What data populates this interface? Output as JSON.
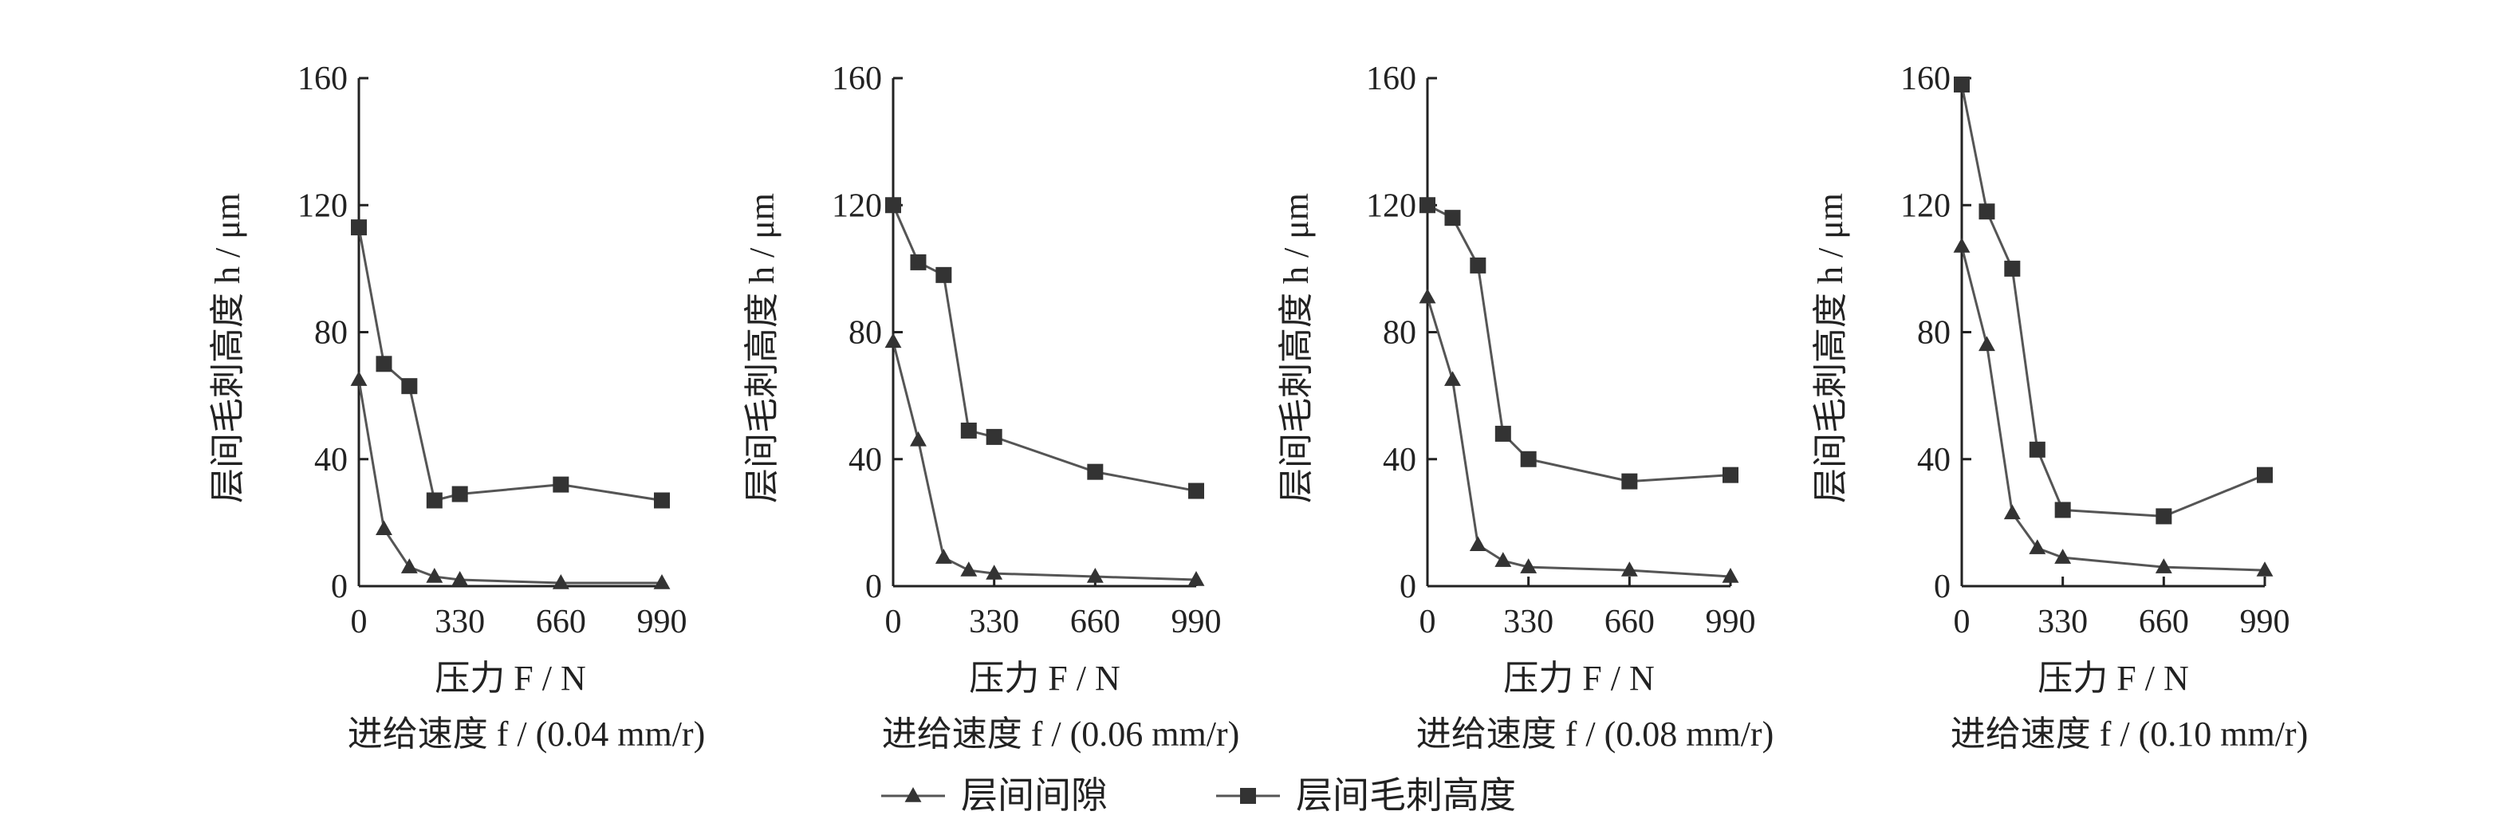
{
  "colors": {
    "line": "#555555",
    "marker": "#333333",
    "axis": "#222222",
    "text": "#222222"
  },
  "legend": [
    {
      "label": "层间间隙",
      "marker": "triangle"
    },
    {
      "label": "层间毛刺高度",
      "marker": "square"
    }
  ],
  "chart_data": [
    {
      "type": "line",
      "xlabel": "压力 F / N",
      "ylabel": "层间毛刺高度 h / μm",
      "caption": "进给速度 f / (0.04 mm/r)",
      "xlim": [
        0,
        990
      ],
      "ylim": [
        0,
        160
      ],
      "xticks": [
        "0",
        "330",
        "660",
        "990"
      ],
      "yticks": [
        "0",
        "40",
        "80",
        "120",
        "160"
      ],
      "series": [
        {
          "name": "层间间隙",
          "marker": "triangle",
          "x": [
            0,
            82,
            165,
            247,
            330,
            660,
            990
          ],
          "y": [
            65,
            18,
            6,
            3,
            2,
            1,
            1
          ]
        },
        {
          "name": "层间毛刺高度",
          "marker": "square",
          "x": [
            0,
            82,
            165,
            247,
            330,
            660,
            990
          ],
          "y": [
            113,
            70,
            63,
            27,
            29,
            32,
            27
          ]
        }
      ]
    },
    {
      "type": "line",
      "xlabel": "压力 F / N",
      "ylabel": "层间毛刺高度 h / μm",
      "caption": "进给速度 f / (0.06 mm/r)",
      "xlim": [
        0,
        990
      ],
      "ylim": [
        0,
        160
      ],
      "xticks": [
        "0",
        "330",
        "660",
        "990"
      ],
      "yticks": [
        "0",
        "40",
        "80",
        "120",
        "160"
      ],
      "series": [
        {
          "name": "层间间隙",
          "marker": "triangle",
          "x": [
            0,
            82,
            165,
            247,
            330,
            660,
            990
          ],
          "y": [
            77,
            46,
            9,
            5,
            4,
            3,
            2
          ]
        },
        {
          "name": "层间毛刺高度",
          "marker": "square",
          "x": [
            0,
            82,
            165,
            247,
            330,
            660,
            990
          ],
          "y": [
            120,
            102,
            98,
            49,
            47,
            36,
            30
          ]
        }
      ]
    },
    {
      "type": "line",
      "xlabel": "压力 F / N",
      "ylabel": "层间毛刺高度 h / μm",
      "caption": "进给速度 f / (0.08 mm/r)",
      "xlim": [
        0,
        990
      ],
      "ylim": [
        0,
        160
      ],
      "xticks": [
        "0",
        "330",
        "660",
        "990"
      ],
      "yticks": [
        "0",
        "40",
        "80",
        "120",
        "160"
      ],
      "series": [
        {
          "name": "层间间隙",
          "marker": "triangle",
          "x": [
            0,
            82,
            165,
            247,
            330,
            660,
            990
          ],
          "y": [
            91,
            65,
            13,
            8,
            6,
            5,
            3
          ]
        },
        {
          "name": "层间毛刺高度",
          "marker": "square",
          "x": [
            0,
            82,
            165,
            247,
            330,
            660,
            990
          ],
          "y": [
            120,
            116,
            101,
            48,
            40,
            33,
            35
          ]
        }
      ]
    },
    {
      "type": "line",
      "xlabel": "压力 F / N",
      "ylabel": "层间毛刺高度 h / μm",
      "caption": "进给速度 f / (0.10 mm/r)",
      "xlim": [
        0,
        990
      ],
      "ylim": [
        0,
        160
      ],
      "xticks": [
        "0",
        "330",
        "660",
        "990"
      ],
      "yticks": [
        "0",
        "40",
        "80",
        "120",
        "160"
      ],
      "series": [
        {
          "name": "层间间隙",
          "marker": "triangle",
          "x": [
            0,
            82,
            165,
            247,
            330,
            660,
            990
          ],
          "y": [
            107,
            76,
            23,
            12,
            9,
            6,
            5
          ]
        },
        {
          "name": "层间毛刺高度",
          "marker": "square",
          "x": [
            0,
            82,
            165,
            247,
            330,
            660,
            990
          ],
          "y": [
            158,
            118,
            100,
            43,
            24,
            22,
            35
          ]
        }
      ]
    }
  ]
}
